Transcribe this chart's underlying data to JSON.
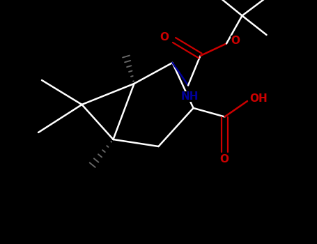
{
  "bg_color": "#000000",
  "bond_color": "#ffffff",
  "o_color": "#cc0000",
  "n_color": "#000099",
  "h_color": "#666666",
  "fig_width": 4.55,
  "fig_height": 3.5,
  "dpi": 100,
  "lw": 1.8,
  "lw2": 1.6,
  "fs_label": 11,
  "xlim": [
    0,
    9
  ],
  "ylim": [
    0,
    7
  ]
}
